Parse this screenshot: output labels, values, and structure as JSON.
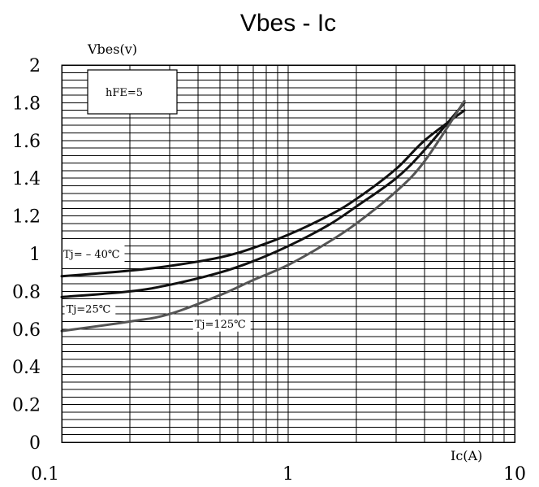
{
  "chart_data": {
    "type": "line",
    "title": "Vbes - Ic",
    "ylabel": "Vbes(v)",
    "xlabel": "Ic(A)",
    "xscale": "log",
    "xlim": [
      0.1,
      10
    ],
    "ylim": [
      0,
      2
    ],
    "grid": true,
    "x_ticks": [
      {
        "value": 0.1,
        "label": "0.1"
      },
      {
        "value": 1,
        "label": "1"
      },
      {
        "value": 10,
        "label": "10"
      }
    ],
    "y_ticks": [
      {
        "value": 0,
        "label": "0"
      },
      {
        "value": 0.2,
        "label": "0.2"
      },
      {
        "value": 0.4,
        "label": "0.4"
      },
      {
        "value": 0.6,
        "label": "0.6"
      },
      {
        "value": 0.8,
        "label": "0.8"
      },
      {
        "value": 1.0,
        "label": "1"
      },
      {
        "value": 1.2,
        "label": "1.2"
      },
      {
        "value": 1.4,
        "label": "1.4"
      },
      {
        "value": 1.6,
        "label": "1.6"
      },
      {
        "value": 1.8,
        "label": "1.8"
      },
      {
        "value": 2.0,
        "label": "2"
      }
    ],
    "condition_label": "hFE=5",
    "series": [
      {
        "name": "Tj=-40°C",
        "color": "#111111",
        "x": [
          0.1,
          0.2,
          0.3,
          0.5,
          0.7,
          1.0,
          1.5,
          2.0,
          3.0,
          4.0,
          6.0
        ],
        "y": [
          0.88,
          0.91,
          0.935,
          0.98,
          1.03,
          1.1,
          1.2,
          1.29,
          1.45,
          1.6,
          1.76
        ]
      },
      {
        "name": "Tj=25°C",
        "color": "#111111",
        "x": [
          0.1,
          0.2,
          0.3,
          0.5,
          0.7,
          1.0,
          1.5,
          2.0,
          3.0,
          4.0,
          6.0
        ],
        "y": [
          0.77,
          0.8,
          0.835,
          0.9,
          0.96,
          1.04,
          1.15,
          1.25,
          1.4,
          1.55,
          1.8
        ]
      },
      {
        "name": "Tj=125°C",
        "color": "#555555",
        "x": [
          0.1,
          0.2,
          0.3,
          0.5,
          0.7,
          1.0,
          1.5,
          2.0,
          3.0,
          4.0,
          6.0
        ],
        "y": [
          0.59,
          0.64,
          0.68,
          0.78,
          0.86,
          0.94,
          1.06,
          1.16,
          1.33,
          1.49,
          1.81
        ]
      }
    ],
    "series_labels": [
      {
        "text": "Tj= – 40℃",
        "x": 0.1,
        "y": 1.0
      },
      {
        "text": "Tj=25℃",
        "x": 0.103,
        "y": 0.71
      },
      {
        "text": "Tj=125℃",
        "x": 0.38,
        "y": 0.63
      }
    ]
  }
}
